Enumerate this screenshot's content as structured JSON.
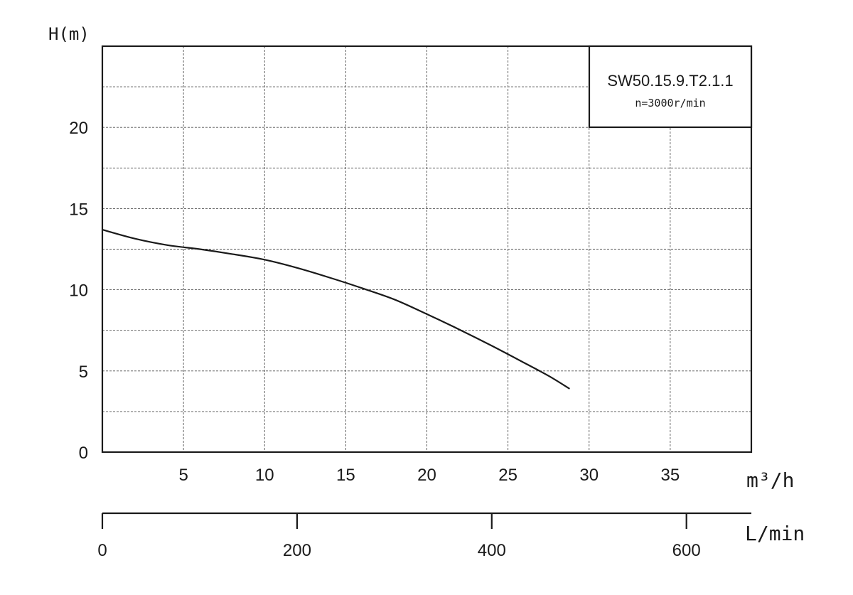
{
  "chart_data": {
    "type": "line",
    "title": "SW50.15.9.T2.1.1",
    "subtitle": "n=3000r/min",
    "ylabel": "H(m)",
    "xlabel": "m³/h",
    "x2label": "L/min",
    "ylim": [
      0,
      25
    ],
    "xlim": [
      0,
      40
    ],
    "x2lim": [
      0,
      666.67
    ],
    "y_ticks": [
      "0",
      "5",
      "10",
      "15",
      "20"
    ],
    "y_tick_values": [
      0,
      5,
      10,
      15,
      20
    ],
    "x_ticks": [
      "5",
      "10",
      "15",
      "20",
      "25",
      "30",
      "35"
    ],
    "x_tick_values": [
      5,
      10,
      15,
      20,
      25,
      30,
      35
    ],
    "x2_ticks": [
      "0",
      "200",
      "400",
      "600"
    ],
    "x2_tick_values": [
      0,
      200,
      400,
      600
    ],
    "grid": true,
    "legend_box": "top-right",
    "series": [
      {
        "x": [
          0,
          2,
          4,
          6,
          8,
          10,
          12,
          14,
          16,
          18,
          20,
          22,
          24,
          26,
          27.5,
          28.8
        ],
        "y": [
          13.7,
          13.15,
          12.75,
          12.5,
          12.2,
          11.85,
          11.35,
          10.75,
          10.1,
          9.4,
          8.5,
          7.55,
          6.55,
          5.5,
          4.7,
          3.9
        ]
      }
    ]
  }
}
